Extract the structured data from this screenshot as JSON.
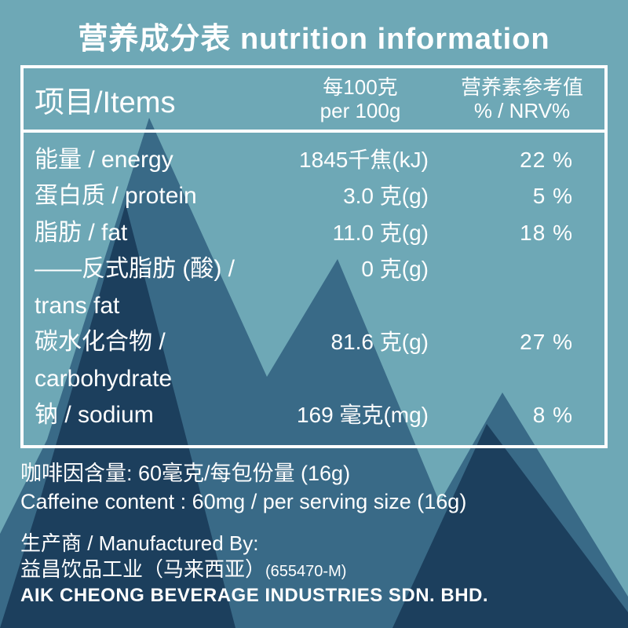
{
  "colors": {
    "bg_air": "#6ea8b6",
    "mountain_back": "#396a87",
    "mountain_front": "#1c3f5d",
    "text": "#ffffff",
    "border": "#ffffff"
  },
  "title": "营养成分表 nutrition information",
  "header": {
    "items": "项目/Items",
    "per100_line1": "每100克",
    "per100_line2": "per 100g",
    "nrv_line1": "营养素参考值",
    "nrv_line2": "% / NRV%"
  },
  "rows": [
    {
      "name": "能量 / energy",
      "value": "1845千焦(kJ)",
      "nrv": "22 %"
    },
    {
      "name": "蛋白质 / protein",
      "value": "3.0 克(g)",
      "nrv": "5 %"
    },
    {
      "name": "脂肪 / fat",
      "value": "11.0 克(g)",
      "nrv": "18 %"
    },
    {
      "name": "——反式脂肪 (酸) / trans fat",
      "value": "0 克(g)",
      "nrv": ""
    },
    {
      "name": "碳水化合物 / carbohydrate",
      "value": "81.6 克(g)",
      "nrv": "27 %"
    },
    {
      "name": "钠 / sodium",
      "value": "169 毫克(mg)",
      "nrv": "8 %"
    }
  ],
  "caffeine_zh": "咖啡因含量:   60毫克/每包份量 (16g)",
  "caffeine_en": "Caffeine content : 60mg / per serving size (16g)",
  "mfr_label": "生产商 / Manufactured By:",
  "mfr_zh": "益昌饮品工业（马来西亚）",
  "mfr_reg": "(655470-M)",
  "mfr_en": "AIK CHEONG BEVERAGE INDUSTRIES SDN. BHD."
}
